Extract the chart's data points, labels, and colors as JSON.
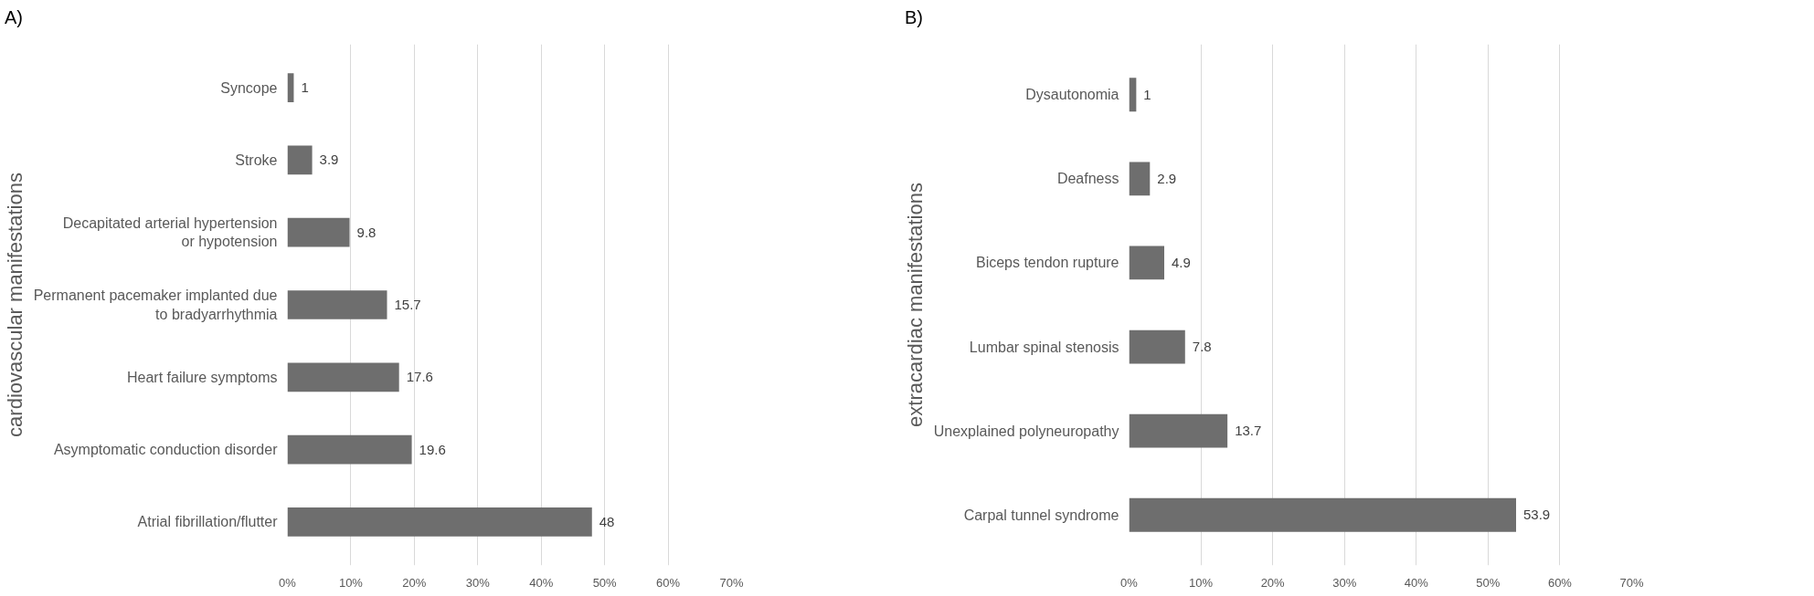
{
  "chart_data": [
    {
      "type": "bar",
      "orientation": "horizontal",
      "title": "A)",
      "ylabel": "cardiovascular manifestations",
      "categories": [
        "Syncope",
        "Stroke",
        "Decapitated arterial hypertension or hypotension",
        "Permanent pacemaker implanted due to bradyarrhythmia",
        "Heart failure symptoms",
        "Asymptomatic conduction disorder",
        "Atrial fibrillation/flutter"
      ],
      "values": [
        1,
        3.9,
        9.8,
        15.7,
        17.6,
        19.6,
        48
      ],
      "color": "#6e6e6e",
      "data_labels": true,
      "xlim": [
        0,
        70
      ],
      "xticks": [
        {
          "value": 0,
          "label": "0%"
        },
        {
          "value": 10,
          "label": "10%"
        },
        {
          "value": 20,
          "label": "20%"
        },
        {
          "value": 30,
          "label": "30%"
        },
        {
          "value": 40,
          "label": "40%"
        },
        {
          "value": 50,
          "label": "50%"
        },
        {
          "value": 60,
          "label": "60%"
        },
        {
          "value": 70,
          "label": "70%"
        }
      ],
      "grid": "x"
    },
    {
      "type": "bar",
      "orientation": "horizontal",
      "title": "B)",
      "ylabel": "extracardiac manifestations",
      "categories": [
        "Dysautonomia",
        "Deafness",
        "Biceps tendon rupture",
        "Lumbar spinal stenosis",
        "Unexplained polyneuropathy",
        "Carpal tunnel syndrome"
      ],
      "values": [
        1,
        2.9,
        4.9,
        7.8,
        13.7,
        53.9
      ],
      "color": "#6e6e6e",
      "data_labels": true,
      "xlim": [
        0,
        70
      ],
      "xticks": [
        {
          "value": 0,
          "label": "0%"
        },
        {
          "value": 10,
          "label": "10%"
        },
        {
          "value": 20,
          "label": "20%"
        },
        {
          "value": 30,
          "label": "30%"
        },
        {
          "value": 40,
          "label": "40%"
        },
        {
          "value": 50,
          "label": "50%"
        },
        {
          "value": 60,
          "label": "60%"
        },
        {
          "value": 70,
          "label": "70%"
        }
      ],
      "grid": "x"
    }
  ]
}
